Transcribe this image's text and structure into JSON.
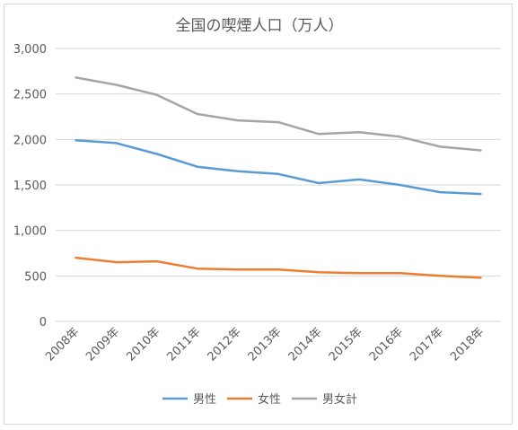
{
  "chart_data": {
    "type": "line",
    "title": "全国の喫煙人口（万人）",
    "categories": [
      "2008年",
      "2009年",
      "2010年",
      "2011年",
      "2012年",
      "2013年",
      "2014年",
      "2015年",
      "2016年",
      "2017年",
      "2018年"
    ],
    "series": [
      {
        "name": "男性",
        "color": "#5b9bd5",
        "values": [
          1990,
          1960,
          1840,
          1700,
          1650,
          1620,
          1520,
          1560,
          1500,
          1420,
          1400
        ]
      },
      {
        "name": "女性",
        "color": "#ed7d31",
        "values": [
          700,
          650,
          660,
          580,
          570,
          570,
          540,
          530,
          530,
          500,
          480
        ]
      },
      {
        "name": "男女計",
        "color": "#a5a5a5",
        "values": [
          2680,
          2600,
          2490,
          2280,
          2210,
          2190,
          2060,
          2080,
          2030,
          1920,
          1880
        ]
      }
    ],
    "ylim": [
      0,
      3000
    ],
    "yticks": [
      0,
      500,
      1000,
      1500,
      2000,
      2500,
      3000
    ],
    "ytick_labels": [
      "0",
      "500",
      "1,000",
      "1,500",
      "2,000",
      "2,500",
      "3,000"
    ],
    "grid": true,
    "legend_position": "bottom",
    "xlabel": "",
    "ylabel": ""
  }
}
